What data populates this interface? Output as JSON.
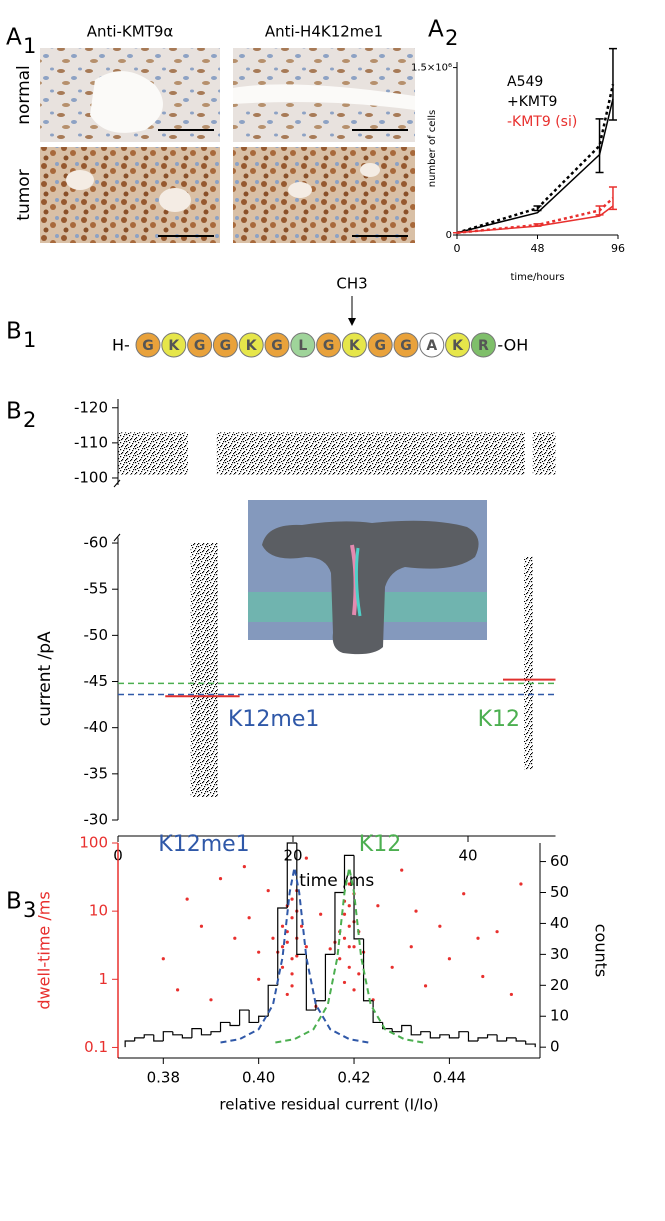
{
  "panels": [
    {
      "letter": "A",
      "index": "1"
    },
    {
      "letter": "A",
      "index": "2"
    },
    {
      "letter": "B",
      "index": "1"
    },
    {
      "letter": "B",
      "index": "2"
    },
    {
      "letter": "B",
      "index": "3"
    }
  ],
  "micrographs": {
    "columns": [
      "Anti-KMT9α",
      "Anti-H4K12me1"
    ],
    "rows": [
      "normal",
      "tumor"
    ]
  },
  "peptide": {
    "prefix": "H-",
    "suffix": "-OH",
    "modification": "CH3",
    "residues": [
      {
        "letter": "G",
        "color": "#e9a23b"
      },
      {
        "letter": "K",
        "color": "#e6e64a"
      },
      {
        "letter": "G",
        "color": "#e9a23b"
      },
      {
        "letter": "G",
        "color": "#e9a23b"
      },
      {
        "letter": "K",
        "color": "#e6e64a"
      },
      {
        "letter": "G",
        "color": "#e9a23b"
      },
      {
        "letter": "L",
        "color": "#9fd49a"
      },
      {
        "letter": "G",
        "color": "#e9a23b"
      },
      {
        "letter": "K",
        "color": "#e6e64a"
      },
      {
        "letter": "G",
        "color": "#e9a23b"
      },
      {
        "letter": "G",
        "color": "#e9a23b"
      },
      {
        "letter": "A",
        "color": "#ffffff"
      },
      {
        "letter": "K",
        "color": "#e6e64a"
      },
      {
        "letter": "R",
        "color": "#7fbf6a"
      }
    ]
  },
  "chart_data": [
    {
      "type": "line",
      "xlabel": "time/hours",
      "ylabel": "number of cells",
      "legend_title": "A549",
      "x": [
        0,
        48,
        85,
        93
      ],
      "xlim": [
        0,
        96
      ],
      "xticks": [
        0,
        48,
        96
      ],
      "ylim": [
        0,
        1550000
      ],
      "yticks": [
        0,
        {
          "value": 1500000,
          "label": "1.5×10⁶"
        }
      ],
      "series": [
        {
          "name": "+KMT9",
          "color": "#000000",
          "values": [
            20000,
            240000,
            800000,
            1350000
          ],
          "errors": [
            0,
            20000,
            240000,
            320000
          ],
          "fit": [
            20000,
            200000,
            720000,
            1220000
          ]
        },
        {
          "name": "-KMT9 (si)",
          "color": "#e8302e",
          "values": [
            20000,
            90000,
            220000,
            330000
          ],
          "errors": [
            0,
            10000,
            40000,
            100000
          ],
          "fit": [
            20000,
            80000,
            170000,
            260000
          ]
        }
      ]
    },
    {
      "type": "trace",
      "xlim": [
        0,
        50
      ],
      "ylim": [
        -98,
        -122.5
      ],
      "yticks": [
        -120,
        -110,
        -100
      ],
      "segments": [
        {
          "x": [
            0,
            8
          ],
          "range": [
            -101,
            -113
          ]
        },
        {
          "x": [
            11.3,
            46.5
          ],
          "range": [
            -101,
            -113
          ]
        },
        {
          "x": [
            47.4,
            50
          ],
          "range": [
            -101,
            -113
          ]
        }
      ]
    },
    {
      "type": "trace",
      "xlabel": "time /ms",
      "ylabel": "current /pA",
      "xlim": [
        0,
        50
      ],
      "xticks": [
        0,
        20,
        40
      ],
      "ylim": [
        -30,
        -60.6
      ],
      "yticks": [
        -60,
        -55,
        -50,
        -45,
        -40,
        -35,
        -30
      ],
      "segments": [
        {
          "x": [
            8.3,
            11.4
          ],
          "range": [
            -32.5,
            -60
          ]
        },
        {
          "x": [
            46.4,
            47.4
          ],
          "range": [
            -35.5,
            -58.5
          ]
        }
      ],
      "fit_color": "#e0302e",
      "levels": [
        {
          "name": "K12me1",
          "color": "#2f58a8",
          "value": -43.6,
          "fit": -43.4,
          "fit_x": [
            5.4,
            13.9
          ]
        },
        {
          "name": "K12",
          "color": "#4caf50",
          "value": -44.8,
          "fit": -45.2,
          "fit_x": [
            44,
            50
          ]
        }
      ]
    },
    {
      "type": "combo",
      "xlabel": "relative residual current (I/Io)",
      "ylabel": "dwell-time /ms",
      "y2label": "counts",
      "axis_color": "#e8302e",
      "xlim": [
        0.3705,
        0.459
      ],
      "xticks": [
        0.38,
        {
          "value": 0.4,
          "label": "0.40"
        },
        0.42,
        0.44
      ],
      "yscale": "log",
      "ylim": [
        0.07,
        100
      ],
      "yticks": [
        0.1,
        1,
        10,
        100
      ],
      "y2lim": [
        -3.5,
        66
      ],
      "y2ticks": [
        0,
        10,
        20,
        30,
        40,
        50,
        60
      ],
      "scatter": {
        "color": "#e8302e",
        "x": [
          0.405,
          0.406,
          0.407,
          0.408,
          0.407,
          0.406,
          0.408,
          0.405,
          0.409,
          0.407,
          0.406,
          0.404,
          0.408,
          0.407,
          0.405,
          0.41,
          0.403,
          0.407,
          0.406,
          0.408,
          0.418,
          0.419,
          0.42,
          0.419,
          0.417,
          0.421,
          0.418,
          0.42,
          0.419,
          0.416,
          0.422,
          0.418,
          0.419,
          0.42,
          0.417,
          0.421,
          0.418,
          0.415,
          0.42,
          0.419,
          0.38,
          0.385,
          0.39,
          0.392,
          0.395,
          0.398,
          0.4,
          0.402,
          0.412,
          0.413,
          0.425,
          0.428,
          0.43,
          0.432,
          0.435,
          0.438,
          0.44,
          0.443,
          0.447,
          0.45,
          0.453,
          0.455,
          0.383,
          0.388,
          0.397,
          0.41,
          0.424,
          0.433,
          0.446,
          0.4
        ],
        "values": [
          3,
          5,
          8,
          4,
          2,
          12,
          20,
          1.5,
          6,
          0.8,
          3.5,
          2.5,
          10,
          15,
          6,
          3,
          4,
          1.2,
          0.6,
          2.2,
          4,
          6,
          3,
          12,
          2,
          5,
          9,
          18,
          1.5,
          3.5,
          2.5,
          0.9,
          25,
          7,
          5,
          1.2,
          14,
          2.8,
          0.7,
          3,
          2,
          15,
          0.5,
          30,
          4,
          8,
          1,
          20,
          0.4,
          9,
          12,
          1.5,
          40,
          3,
          0.8,
          6,
          2,
          18,
          1.1,
          5,
          0.6,
          25,
          0.7,
          6,
          45,
          60,
          0.5,
          10,
          4,
          2.5
        ]
      },
      "histogram": {
        "color": "#000000",
        "axis": "y2",
        "bins": [
          0.372,
          0.374,
          0.376,
          0.378,
          0.38,
          0.382,
          0.384,
          0.386,
          0.388,
          0.39,
          0.392,
          0.394,
          0.396,
          0.398,
          0.4,
          0.402,
          0.404,
          0.406,
          0.408,
          0.41,
          0.412,
          0.414,
          0.416,
          0.418,
          0.42,
          0.422,
          0.424,
          0.426,
          0.428,
          0.43,
          0.432,
          0.434,
          0.436,
          0.438,
          0.44,
          0.442,
          0.444,
          0.446,
          0.448,
          0.45,
          0.452,
          0.454,
          0.456,
          0.458
        ],
        "counts": [
          2,
          3,
          4,
          2,
          5,
          4,
          3,
          6,
          4,
          5,
          8,
          7,
          12,
          8,
          10,
          20,
          45,
          66,
          30,
          12,
          15,
          30,
          50,
          62,
          35,
          15,
          8,
          6,
          5,
          7,
          4,
          5,
          3,
          4,
          3,
          5,
          2,
          3,
          4,
          2,
          3,
          2,
          1
        ]
      },
      "fits": [
        {
          "name": "K12me1",
          "color": "#2f58a8",
          "axis": "y2",
          "x": [
            0.392,
            0.396,
            0.4,
            0.403,
            0.405,
            0.4065,
            0.4075,
            0.4085,
            0.41,
            0.412,
            0.415,
            0.419,
            0.423
          ],
          "values": [
            1.5,
            2.6,
            5.8,
            13.7,
            29,
            50,
            58,
            50,
            29,
            13.7,
            5.8,
            2.6,
            1.5
          ]
        },
        {
          "name": "K12",
          "color": "#4caf50",
          "axis": "y2",
          "x": [
            0.4035,
            0.4075,
            0.4115,
            0.4145,
            0.4165,
            0.418,
            0.419,
            0.42,
            0.4215,
            0.4235,
            0.4265,
            0.4305,
            0.4345
          ],
          "values": [
            1.5,
            2.6,
            5.8,
            13.7,
            29,
            50,
            58,
            50,
            29,
            13.7,
            5.8,
            2.6,
            1.5
          ]
        }
      ]
    }
  ]
}
